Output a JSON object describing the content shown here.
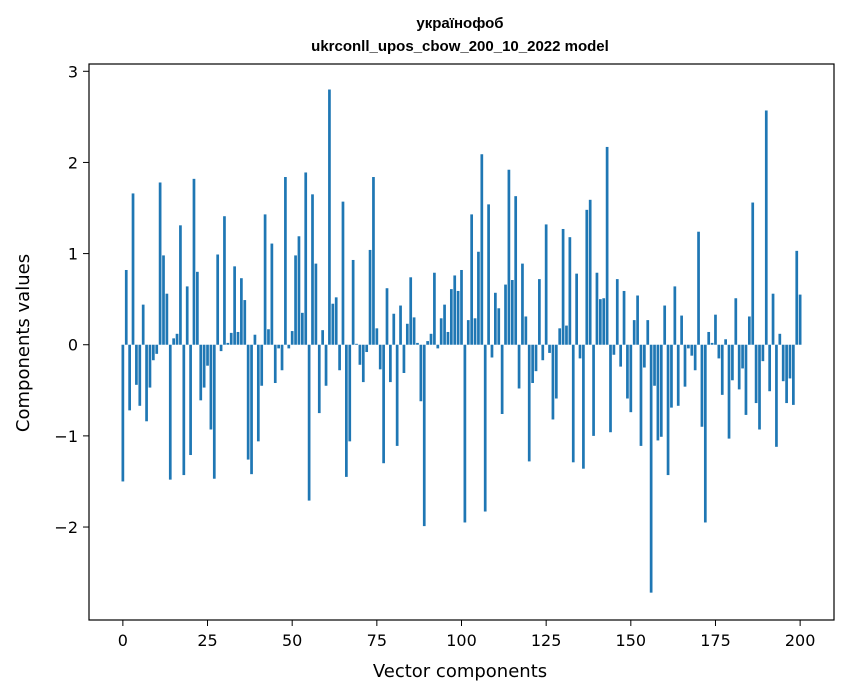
{
  "chart_data": {
    "type": "bar",
    "title": "українофоб",
    "subtitle": "ukrconll_upos_cbow_200_10_2022 model",
    "xlabel": "Vector components",
    "ylabel": "Components values",
    "xlim": [
      -10,
      210
    ],
    "ylim": [
      -3.02,
      3.08
    ],
    "xticks": [
      0,
      25,
      50,
      75,
      100,
      125,
      150,
      175,
      200
    ],
    "yticks": [
      -2,
      -1,
      0,
      1,
      2,
      3
    ],
    "ytick_labels": [
      "−2",
      "−1",
      "0",
      "1",
      "2",
      "3"
    ],
    "color": "#1f77b4",
    "grid": false,
    "values": [
      -1.5,
      0.82,
      -0.72,
      1.66,
      -0.44,
      -0.67,
      0.44,
      -0.84,
      -0.47,
      -0.17,
      -0.1,
      1.78,
      0.98,
      0.56,
      -1.48,
      0.07,
      0.12,
      1.31,
      -1.43,
      0.64,
      -1.21,
      1.82,
      0.8,
      -0.61,
      -0.47,
      -0.23,
      -0.93,
      -1.47,
      0.99,
      -0.07,
      1.41,
      0.02,
      0.13,
      0.86,
      0.14,
      0.73,
      0.49,
      -1.26,
      -1.42,
      0.11,
      -1.06,
      -0.45,
      1.43,
      0.17,
      1.11,
      -0.42,
      -0.04,
      -0.28,
      1.84,
      -0.04,
      0.15,
      0.98,
      1.19,
      0.35,
      1.89,
      -1.71,
      1.65,
      0.89,
      -0.75,
      0.16,
      -0.45,
      2.8,
      0.45,
      0.52,
      -0.28,
      1.57,
      -1.45,
      -1.06,
      0.93,
      0.01,
      -0.22,
      -0.41,
      -0.08,
      1.04,
      1.84,
      0.18,
      -0.27,
      -1.3,
      0.62,
      -0.41,
      0.34,
      -1.11,
      0.43,
      -0.31,
      0.23,
      0.74,
      0.3,
      0.02,
      -0.62,
      -1.99,
      0.04,
      0.12,
      0.79,
      -0.04,
      0.29,
      0.44,
      0.14,
      0.61,
      0.76,
      0.59,
      0.82,
      -1.95,
      0.27,
      1.43,
      0.29,
      1.02,
      2.09,
      -1.83,
      1.54,
      -0.14,
      0.57,
      0.4,
      -0.76,
      0.66,
      1.92,
      0.71,
      1.63,
      -0.48,
      0.89,
      0.31,
      -1.28,
      -0.42,
      -0.29,
      0.72,
      -0.17,
      1.32,
      -0.09,
      -0.82,
      -0.59,
      0.18,
      1.27,
      0.21,
      1.18,
      -1.29,
      0.78,
      -0.15,
      -1.36,
      1.48,
      1.59,
      -1.0,
      0.79,
      0.5,
      0.51,
      2.17,
      -0.96,
      -0.11,
      0.72,
      -0.24,
      0.59,
      -0.59,
      -0.74,
      0.27,
      0.54,
      -1.11,
      -0.25,
      0.27,
      -2.72,
      -0.45,
      -1.05,
      -1.01,
      0.43,
      -1.43,
      -0.69,
      0.64,
      -0.67,
      0.32,
      -0.46,
      -0.04,
      -0.12,
      -0.28,
      1.24,
      -0.9,
      -1.95,
      0.14,
      0.02,
      0.33,
      -0.15,
      -0.55,
      0.06,
      -1.03,
      -0.39,
      0.51,
      -0.49,
      -0.26,
      -0.77,
      0.31,
      1.56,
      -0.64,
      -0.93,
      -0.18,
      2.57,
      -0.51,
      0.56,
      -1.12,
      0.12,
      -0.4,
      -0.64,
      -0.37,
      -0.66,
      1.03,
      0.55
    ]
  }
}
